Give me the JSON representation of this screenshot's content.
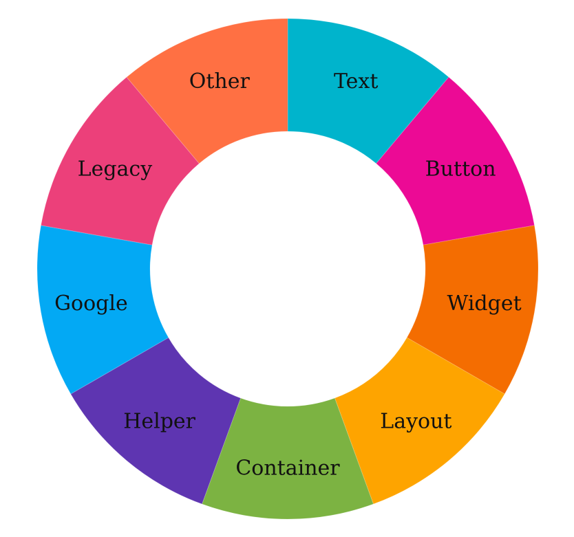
{
  "chart_data": {
    "type": "pie",
    "variant": "donut",
    "categories": [
      "Text",
      "Button",
      "Widget",
      "Layout",
      "Container",
      "Helper",
      "Google",
      "Legacy",
      "Other"
    ],
    "values": [
      1,
      1,
      1,
      1,
      1,
      1,
      1,
      1,
      1
    ],
    "colors": [
      "#00B4CC",
      "#EC0A95",
      "#F46D01",
      "#FEA400",
      "#7CB342",
      "#5E35B1",
      "#03A9F4",
      "#EC407A",
      "#FF7043"
    ],
    "start_angle_deg": 0,
    "direction": "clockwise",
    "legend": "none",
    "title": ""
  }
}
